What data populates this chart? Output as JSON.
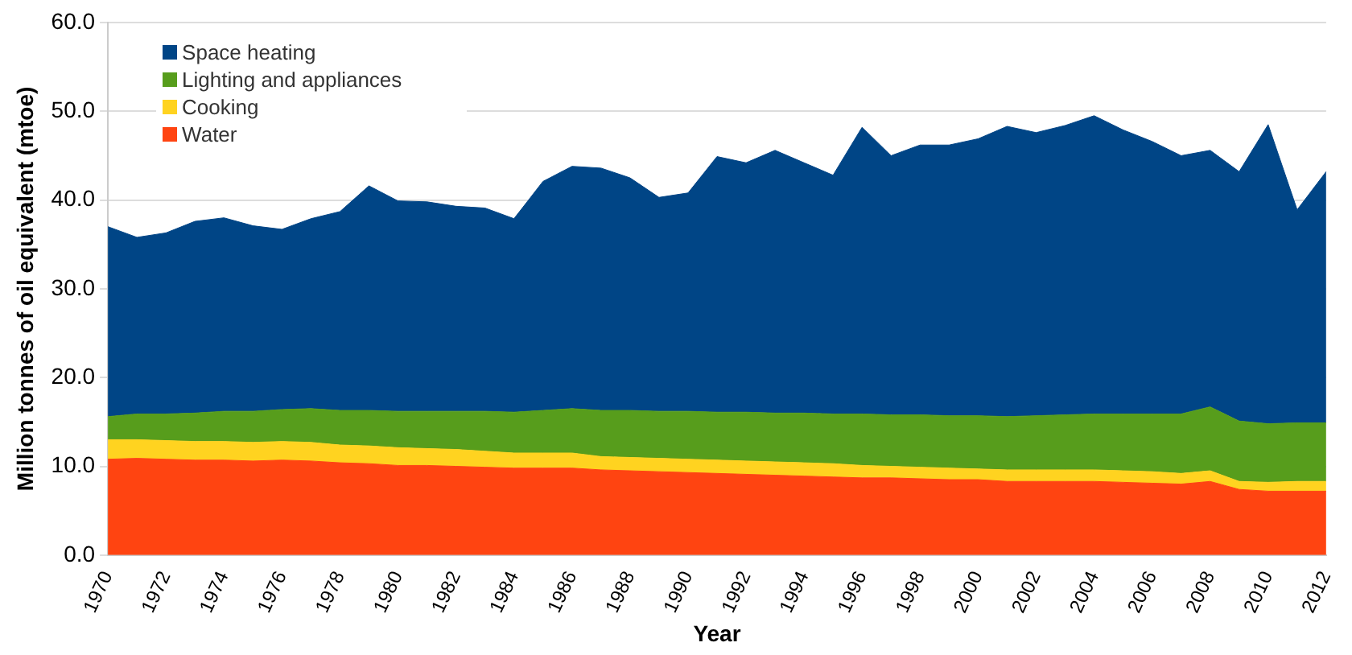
{
  "chart_data": {
    "type": "area",
    "xlabel": "Year",
    "ylabel": "Million tonnes of oil equivalent (mtoe)",
    "categories": [
      "1970",
      null,
      "1972",
      null,
      "1974",
      null,
      "1976",
      null,
      "1978",
      null,
      "1980",
      null,
      "1982",
      null,
      "1984",
      null,
      "1986",
      null,
      "1988",
      null,
      "1990",
      null,
      "1992",
      null,
      "1994",
      null,
      "1996",
      null,
      "1998",
      null,
      "2000",
      null,
      "2002",
      null,
      "2004",
      null,
      "2006",
      null,
      "2008",
      null,
      "2010",
      null,
      "2012"
    ],
    "stacked": true,
    "series": [
      {
        "name": "Water",
        "color": "#ff4411",
        "values": [
          10.8,
          10.9,
          10.8,
          10.7,
          10.7,
          10.6,
          10.7,
          10.6,
          10.4,
          10.3,
          10.1,
          10.1,
          10.0,
          9.9,
          9.8,
          9.8,
          9.8,
          9.6,
          9.5,
          9.4,
          9.3,
          9.2,
          9.1,
          9.0,
          8.9,
          8.8,
          8.7,
          8.7,
          8.6,
          8.5,
          8.5,
          8.3,
          8.3,
          8.3,
          8.3,
          8.2,
          8.1,
          8.0,
          8.3,
          7.4,
          7.2,
          7.2,
          7.2
        ]
      },
      {
        "name": "Cooking",
        "color": "#ffd320",
        "values": [
          2.2,
          2.1,
          2.1,
          2.1,
          2.1,
          2.1,
          2.1,
          2.1,
          2.0,
          2.0,
          2.0,
          1.9,
          1.9,
          1.8,
          1.7,
          1.7,
          1.7,
          1.5,
          1.5,
          1.5,
          1.5,
          1.5,
          1.5,
          1.5,
          1.5,
          1.5,
          1.4,
          1.3,
          1.3,
          1.3,
          1.2,
          1.3,
          1.3,
          1.3,
          1.3,
          1.3,
          1.3,
          1.2,
          1.2,
          0.9,
          1.0,
          1.1,
          1.1
        ]
      },
      {
        "name": "Lighting and appliances",
        "color": "#579d1c",
        "values": [
          2.6,
          2.9,
          3.0,
          3.2,
          3.4,
          3.5,
          3.6,
          3.8,
          3.9,
          4.0,
          4.1,
          4.2,
          4.3,
          4.5,
          4.6,
          4.8,
          5.0,
          5.2,
          5.3,
          5.3,
          5.4,
          5.4,
          5.5,
          5.5,
          5.6,
          5.6,
          5.8,
          5.8,
          5.9,
          5.9,
          6.0,
          6.0,
          6.1,
          6.2,
          6.3,
          6.4,
          6.5,
          6.7,
          7.2,
          6.8,
          6.6,
          6.6,
          6.6
        ]
      },
      {
        "name": "Space heating",
        "color": "#004586",
        "values": [
          21.4,
          19.9,
          20.4,
          21.6,
          21.8,
          20.9,
          20.3,
          21.4,
          22.4,
          25.3,
          23.7,
          23.6,
          23.1,
          22.9,
          21.8,
          25.8,
          27.3,
          27.3,
          26.2,
          24.1,
          24.6,
          28.8,
          28.1,
          29.6,
          28.2,
          26.9,
          32.3,
          29.2,
          30.4,
          30.5,
          31.2,
          32.7,
          31.9,
          32.6,
          33.6,
          32.0,
          30.7,
          29.1,
          28.9,
          28.1,
          33.7,
          24.0,
          28.3
        ]
      }
    ],
    "ylim": [
      0,
      60
    ],
    "yticks": [
      {
        "value": 0,
        "label": "0.0"
      },
      {
        "value": 10,
        "label": "10.0"
      },
      {
        "value": 20,
        "label": "20.0"
      },
      {
        "value": 30,
        "label": "30.0"
      },
      {
        "value": 40,
        "label": "40.0"
      },
      {
        "value": 50,
        "label": "50.0"
      },
      {
        "value": 60,
        "label": "60.0"
      }
    ],
    "grid": "y",
    "legend": "top left"
  }
}
